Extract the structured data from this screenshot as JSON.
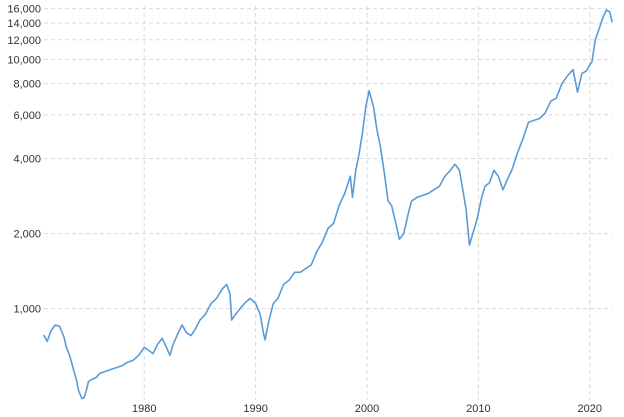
{
  "chart_data": {
    "type": "line",
    "title": "",
    "xlabel": "",
    "ylabel": "",
    "y_scale": "log",
    "ylim": [
      430,
      16400
    ],
    "xlim": [
      1971,
      2022
    ],
    "grid": true,
    "line_color": "#5b9bd5",
    "grid_color": "#d9d9d9",
    "y_ticks": [
      {
        "value": 1000,
        "label": "1,000"
      },
      {
        "value": 2000,
        "label": "2,000"
      },
      {
        "value": 4000,
        "label": "4,000"
      },
      {
        "value": 6000,
        "label": "6,000"
      },
      {
        "value": 8000,
        "label": "8,000"
      },
      {
        "value": 10000,
        "label": "10,000"
      },
      {
        "value": 12000,
        "label": "12,000"
      },
      {
        "value": 14000,
        "label": "14,000"
      },
      {
        "value": 16000,
        "label": "16,000"
      }
    ],
    "x_ticks": [
      {
        "value": 1980,
        "label": "1980"
      },
      {
        "value": 1990,
        "label": "1990"
      },
      {
        "value": 2000,
        "label": "2000"
      },
      {
        "value": 2010,
        "label": "2010"
      },
      {
        "value": 2020,
        "label": "2020"
      }
    ],
    "series": [
      {
        "x": [
          1971.0,
          1971.3,
          1971.6,
          1972.0,
          1972.4,
          1972.8,
          1973.0,
          1973.3,
          1973.6,
          1973.9,
          1974.1,
          1974.4,
          1974.6,
          1974.8,
          1975.0,
          1975.3,
          1975.7,
          1976.0,
          1976.5,
          1977.0,
          1977.5,
          1978.0,
          1978.5,
          1979.0,
          1979.5,
          1980.0,
          1980.4,
          1980.8,
          1981.2,
          1981.6,
          1982.0,
          1982.3,
          1982.6,
          1983.0,
          1983.4,
          1983.8,
          1984.2,
          1984.6,
          1985.0,
          1985.5,
          1986.0,
          1986.5,
          1987.0,
          1987.4,
          1987.7,
          1987.85,
          1988.2,
          1988.6,
          1989.0,
          1989.5,
          1990.0,
          1990.4,
          1990.7,
          1990.85,
          1991.2,
          1991.6,
          1992.0,
          1992.5,
          1993.0,
          1993.5,
          1994.0,
          1994.5,
          1995.0,
          1995.5,
          1996.0,
          1996.5,
          1997.0,
          1997.5,
          1998.0,
          1998.5,
          1998.7,
          1999.0,
          1999.3,
          1999.6,
          1999.9,
          2000.2,
          2000.6,
          2000.9,
          2001.2,
          2001.6,
          2001.9,
          2002.2,
          2002.6,
          2002.9,
          2003.3,
          2003.7,
          2004.0,
          2004.5,
          2005.0,
          2005.5,
          2006.0,
          2006.5,
          2007.0,
          2007.5,
          2007.9,
          2008.3,
          2008.6,
          2008.9,
          2009.2,
          2009.5,
          2009.9,
          2010.3,
          2010.6,
          2011.0,
          2011.4,
          2011.8,
          2012.2,
          2012.6,
          2013.0,
          2013.5,
          2014.0,
          2014.5,
          2015.0,
          2015.5,
          2016.0,
          2016.5,
          2017.0,
          2017.5,
          2018.0,
          2018.5,
          2018.9,
          2019.3,
          2019.7,
          2020.0,
          2020.2,
          2020.5,
          2020.9,
          2021.2,
          2021.5,
          2021.8,
          2022.0
        ],
        "values": [
          780,
          740,
          810,
          860,
          850,
          770,
          700,
          650,
          580,
          520,
          470,
          435,
          440,
          470,
          510,
          520,
          530,
          550,
          560,
          570,
          580,
          590,
          610,
          620,
          650,
          700,
          680,
          660,
          720,
          760,
          700,
          650,
          720,
          790,
          860,
          800,
          780,
          830,
          900,
          950,
          1050,
          1100,
          1200,
          1250,
          1150,
          900,
          950,
          1000,
          1050,
          1100,
          1050,
          950,
          800,
          750,
          900,
          1050,
          1100,
          1250,
          1300,
          1400,
          1400,
          1450,
          1500,
          1700,
          1850,
          2100,
          2200,
          2600,
          2900,
          3400,
          2800,
          3600,
          4200,
          5100,
          6500,
          7500,
          6400,
          5200,
          4500,
          3400,
          2700,
          2600,
          2200,
          1900,
          2000,
          2400,
          2700,
          2800,
          2850,
          2900,
          3000,
          3100,
          3400,
          3600,
          3800,
          3600,
          3000,
          2500,
          1800,
          2000,
          2300,
          2800,
          3100,
          3200,
          3600,
          3400,
          3000,
          3300,
          3600,
          4200,
          4800,
          5600,
          5700,
          5800,
          6100,
          6800,
          7000,
          8000,
          8600,
          9100,
          7400,
          8800,
          9000,
          9500,
          9800,
          12000,
          13500,
          14800,
          15800,
          15500,
          14200
        ]
      }
    ]
  }
}
